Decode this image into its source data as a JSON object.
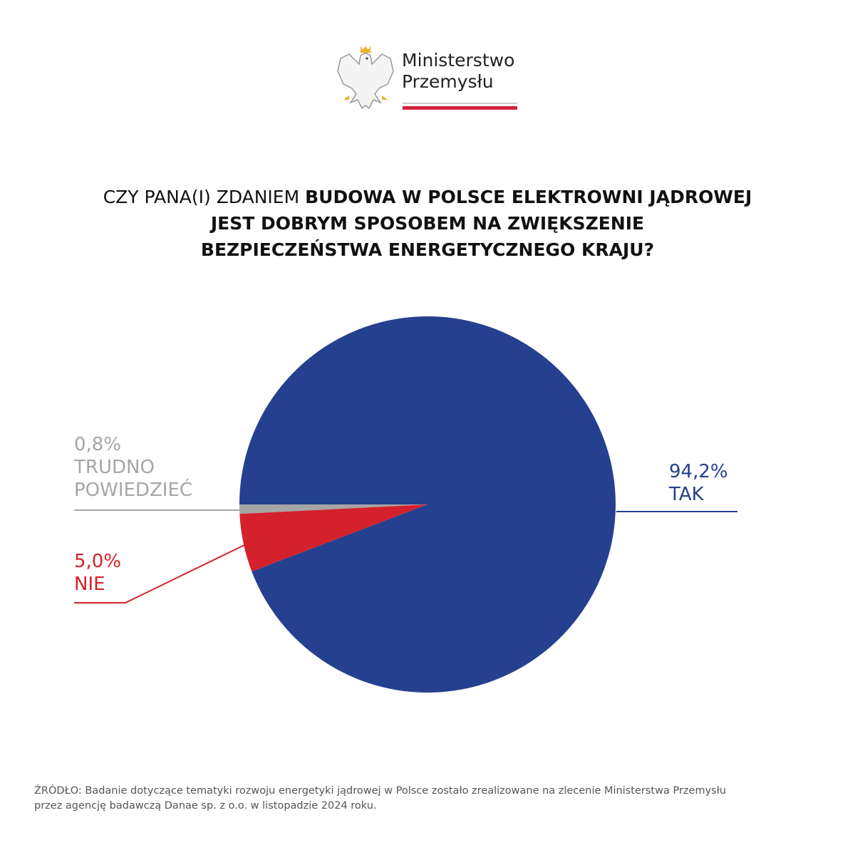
{
  "logo": {
    "line1": "Ministerstwo",
    "line2": "Przemysłu"
  },
  "title": {
    "part1": "CZY PANA(I) ZDANIEM ",
    "part2_bold": "BUDOWA W POLSCE ELEKTROWNI JĄDROWEJ",
    "line2_bold": "JEST DOBRYM SPOSOBEM NA ZWIĘKSZENIE",
    "line3_bold": "BEZPIECZEŃSTWA ENERGETYCZNEGO KRAJU?"
  },
  "chart_data": {
    "type": "pie",
    "slices": [
      {
        "label": "TAK",
        "value": 94.2,
        "value_label": "94,2%",
        "color": "#25408f"
      },
      {
        "label": "NIE",
        "value": 5.0,
        "value_label": "5,0%",
        "color": "#d4212b"
      },
      {
        "label": "TRUDNO POWIEDZIEĆ",
        "label_line1": "TRUDNO",
        "label_line2": "POWIEDZIEĆ",
        "value": 0.8,
        "value_label": "0,8%",
        "color": "#a6a6a6"
      }
    ]
  },
  "footer": {
    "line1": "ŹRÓDŁO: Badanie dotyczące tematyki rozwoju energetyki jądrowej w Polsce zostało zrealizowane na zlecenie Ministerstwa Przemysłu",
    "line2": "przez agencję badawczą Danae sp. z o.o. w listopadzie 2024 roku."
  }
}
